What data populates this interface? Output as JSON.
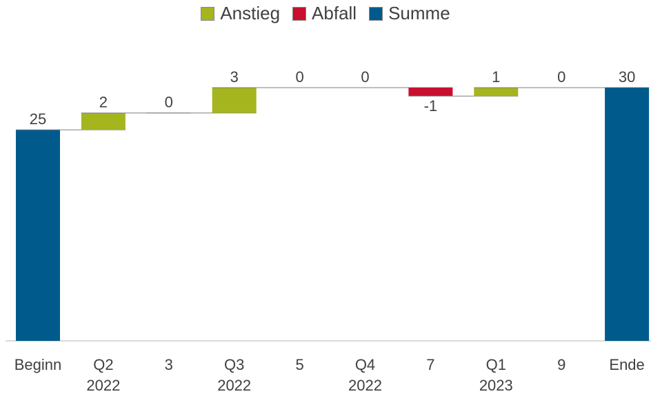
{
  "chart_data": {
    "type": "waterfall",
    "categories": [
      "Beginn",
      "Q2\n2022",
      "3",
      "Q3\n2022",
      "5",
      "Q4\n2022",
      "7",
      "Q1\n2023",
      "9",
      "Ende"
    ],
    "series": [
      {
        "name": "Anstieg",
        "color": "#a5b51e",
        "values": [
          null,
          2,
          0,
          3,
          0,
          0,
          null,
          1,
          0,
          null
        ]
      },
      {
        "name": "Abfall",
        "color": "#c8102e",
        "values": [
          null,
          null,
          null,
          null,
          null,
          null,
          -1,
          null,
          null,
          null
        ]
      },
      {
        "name": "Summe",
        "color": "#005a8c",
        "values": [
          25,
          null,
          null,
          null,
          null,
          null,
          null,
          null,
          null,
          30
        ]
      }
    ],
    "ylim": [
      0,
      30
    ]
  }
}
